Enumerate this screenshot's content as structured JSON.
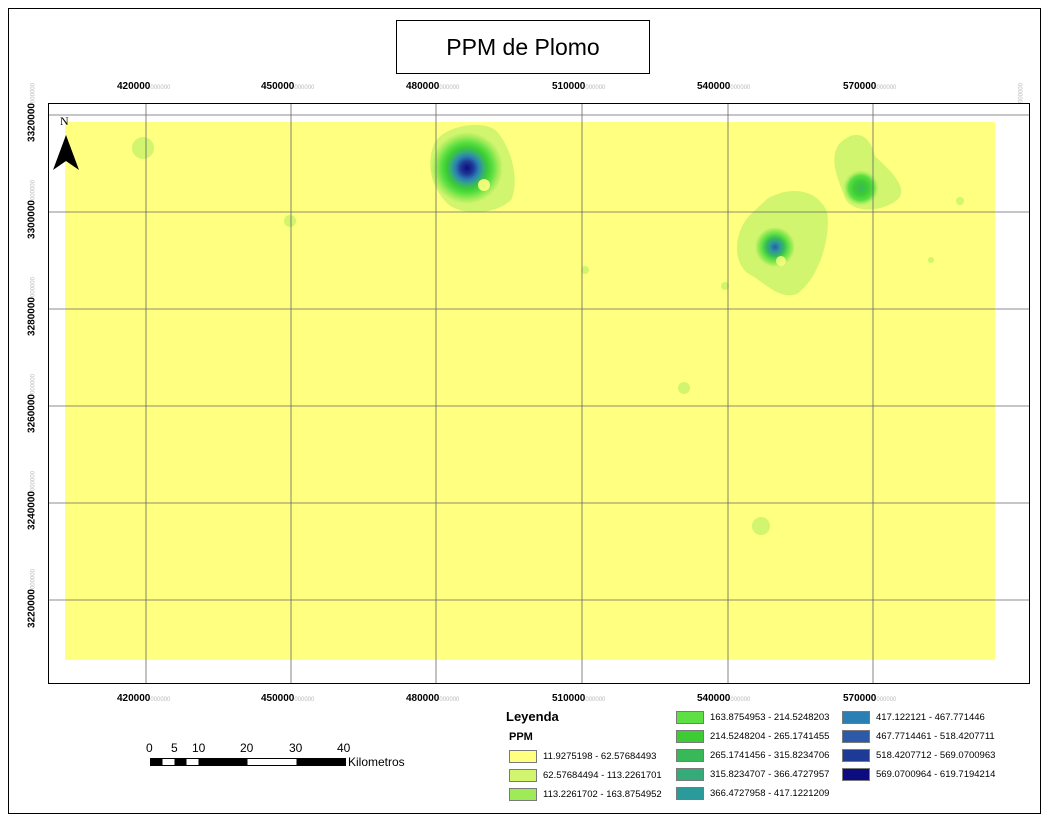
{
  "title": "PPM de Plomo",
  "x_ticks": [
    "420000",
    "450000",
    "480000",
    "510000",
    "540000",
    "570000"
  ],
  "y_ticks": [
    "3320000",
    "3300000",
    "3280000",
    "3260000",
    "3240000",
    "3220000"
  ],
  "tick_suffix": "000000",
  "north_label": "N",
  "legend": {
    "title": "Leyenda",
    "subtitle": "PPM",
    "items": [
      {
        "label": "11.9275198 - 62.57684493",
        "color": "#ffff80"
      },
      {
        "label": "62.57684494 - 113.2261701",
        "color": "#d1f56e"
      },
      {
        "label": "113.2261702 - 163.8754952",
        "color": "#9eeb57"
      },
      {
        "label": "163.8754953 - 214.5248203",
        "color": "#5ce043"
      },
      {
        "label": "214.5248204 - 265.1741455",
        "color": "#3dcc33"
      },
      {
        "label": "265.1741456 - 315.8234706",
        "color": "#39b85a"
      },
      {
        "label": "315.8234707 - 366.4727957",
        "color": "#36ab7a"
      },
      {
        "label": "366.4727958 - 417.1221209",
        "color": "#2b9a9a"
      },
      {
        "label": "417.122121 - 467.771446",
        "color": "#2a7fb5"
      },
      {
        "label": "467.7714461 - 518.4207711",
        "color": "#2c5aa8"
      },
      {
        "label": "518.4207712 - 569.0700963",
        "color": "#1f3a94"
      },
      {
        "label": "569.0700964 - 619.7194214",
        "color": "#0c0c80"
      }
    ]
  },
  "scale_bar": {
    "labels": [
      "0",
      "5",
      "10",
      "20",
      "30",
      "40"
    ],
    "unit": "Kilometros"
  }
}
